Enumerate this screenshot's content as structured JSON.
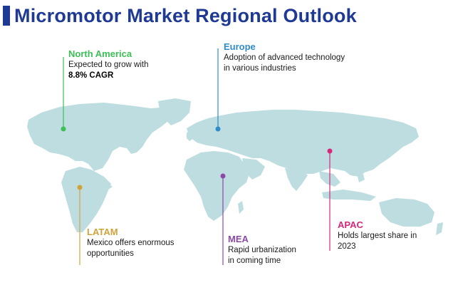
{
  "title": "Micromotor Market Regional Outlook",
  "colors": {
    "title": "#1f3a93",
    "land": "#bddde1",
    "north_america": "#3cbf54",
    "europe": "#2f8cc9",
    "latam": "#d1a23a",
    "mea": "#8a4aa3",
    "apac": "#d6287a"
  },
  "regions": {
    "north_america": {
      "name": "North America",
      "lines": [
        "Expected to grow with"
      ],
      "highlight": "8.8% CAGR"
    },
    "europe": {
      "name": "Europe",
      "lines": [
        "Adoption of advanced technology",
        "in various industries"
      ]
    },
    "latam": {
      "name": "LATAM",
      "lines": [
        "Mexico offers enormous",
        "opportunities"
      ]
    },
    "mea": {
      "name": "MEA",
      "lines": [
        "Rapid urbanization",
        "in coming time"
      ]
    },
    "apac": {
      "name": "APAC",
      "lines": [
        "Holds largest share in",
        "2023"
      ]
    }
  }
}
